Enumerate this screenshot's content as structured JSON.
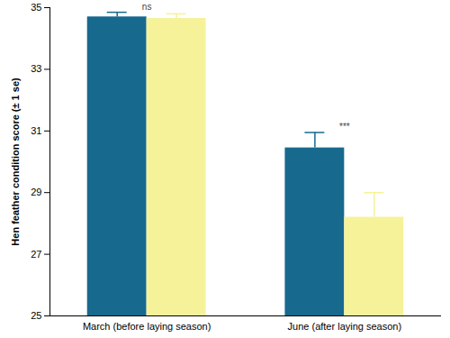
{
  "chart_data": {
    "type": "bar",
    "categories": [
      "March (before laying season)",
      "June (after laying season)"
    ],
    "series": [
      {
        "color": "#17698e",
        "values": [
          34.7,
          30.45
        ],
        "errors": [
          0.15,
          0.5
        ]
      },
      {
        "color": "#f5f29a",
        "values": [
          34.65,
          28.2
        ],
        "errors": [
          0.15,
          0.8
        ]
      }
    ],
    "y_label": "Hen feather condition score (± 1 se)",
    "ylim": [
      25,
      35
    ],
    "yticks": [
      25,
      27,
      29,
      31,
      33,
      35
    ],
    "annotations": [
      {
        "text": "ns",
        "category": "March (before laying season)"
      },
      {
        "text": "***",
        "category": "June (after laying season)"
      }
    ]
  }
}
